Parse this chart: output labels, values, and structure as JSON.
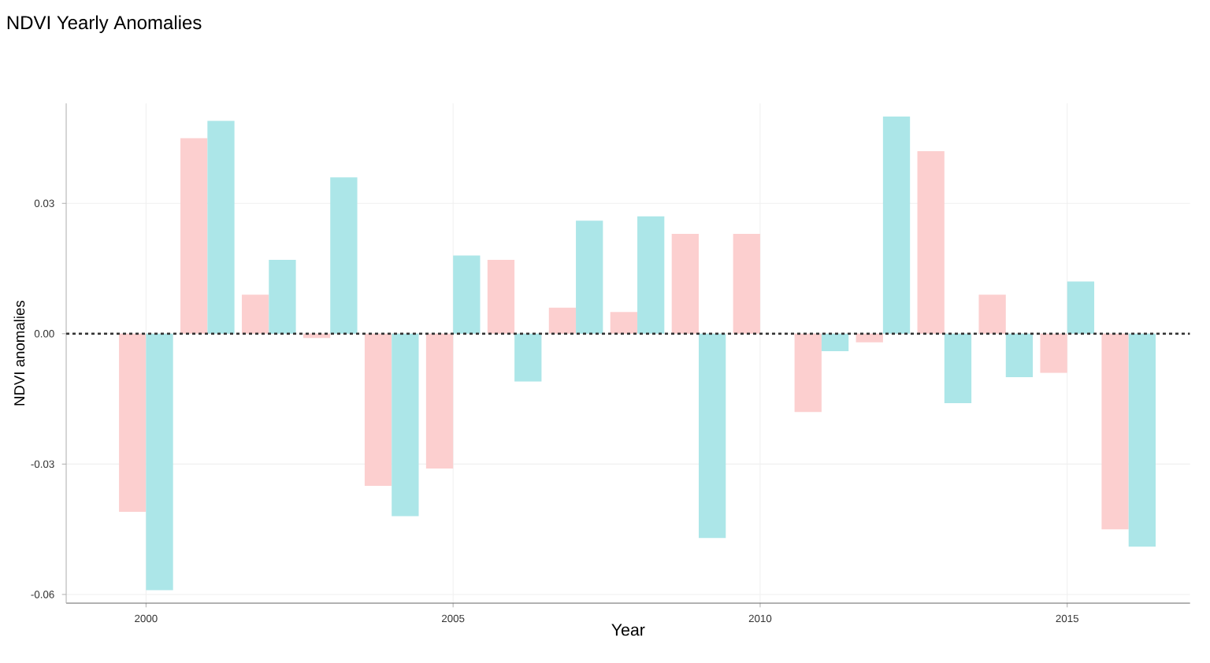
{
  "chart_data": {
    "type": "bar",
    "title": "NDVI Yearly Anomalies",
    "xlabel": "Year",
    "ylabel": "NDVI anomalies",
    "x": [
      2000,
      2001,
      2002,
      2003,
      2004,
      2005,
      2006,
      2007,
      2008,
      2009,
      2010,
      2011,
      2012,
      2013,
      2014,
      2015,
      2016
    ],
    "series": [
      {
        "color": "#fccfcf",
        "values": [
          -0.041,
          0.045,
          0.009,
          -0.001,
          -0.035,
          -0.031,
          0.017,
          0.006,
          0.005,
          0.023,
          0.023,
          -0.018,
          -0.002,
          0.042,
          0.009,
          -0.009,
          -0.045
        ]
      },
      {
        "color": "#ace6e8",
        "values": [
          -0.059,
          0.049,
          0.017,
          0.036,
          -0.042,
          0.018,
          -0.011,
          0.026,
          0.027,
          -0.047,
          0.0,
          -0.004,
          0.05,
          -0.016,
          -0.01,
          0.012,
          -0.049
        ]
      }
    ],
    "xlim": [
      1998.7,
      2017.0
    ],
    "ylim": [
      -0.062,
      0.053
    ],
    "xticks": [
      2000,
      2005,
      2010,
      2015
    ],
    "yticks": [
      {
        "value": -0.06,
        "label": "-0.06"
      },
      {
        "value": -0.03,
        "label": "-0.03"
      },
      {
        "value": 0.0,
        "label": "0.00"
      },
      {
        "value": 0.03,
        "label": "0.03"
      }
    ],
    "ref_lines": [
      {
        "axis": "y",
        "value": 0.0,
        "color": "#333333",
        "line_style": "dotted"
      }
    ],
    "grid": true
  }
}
